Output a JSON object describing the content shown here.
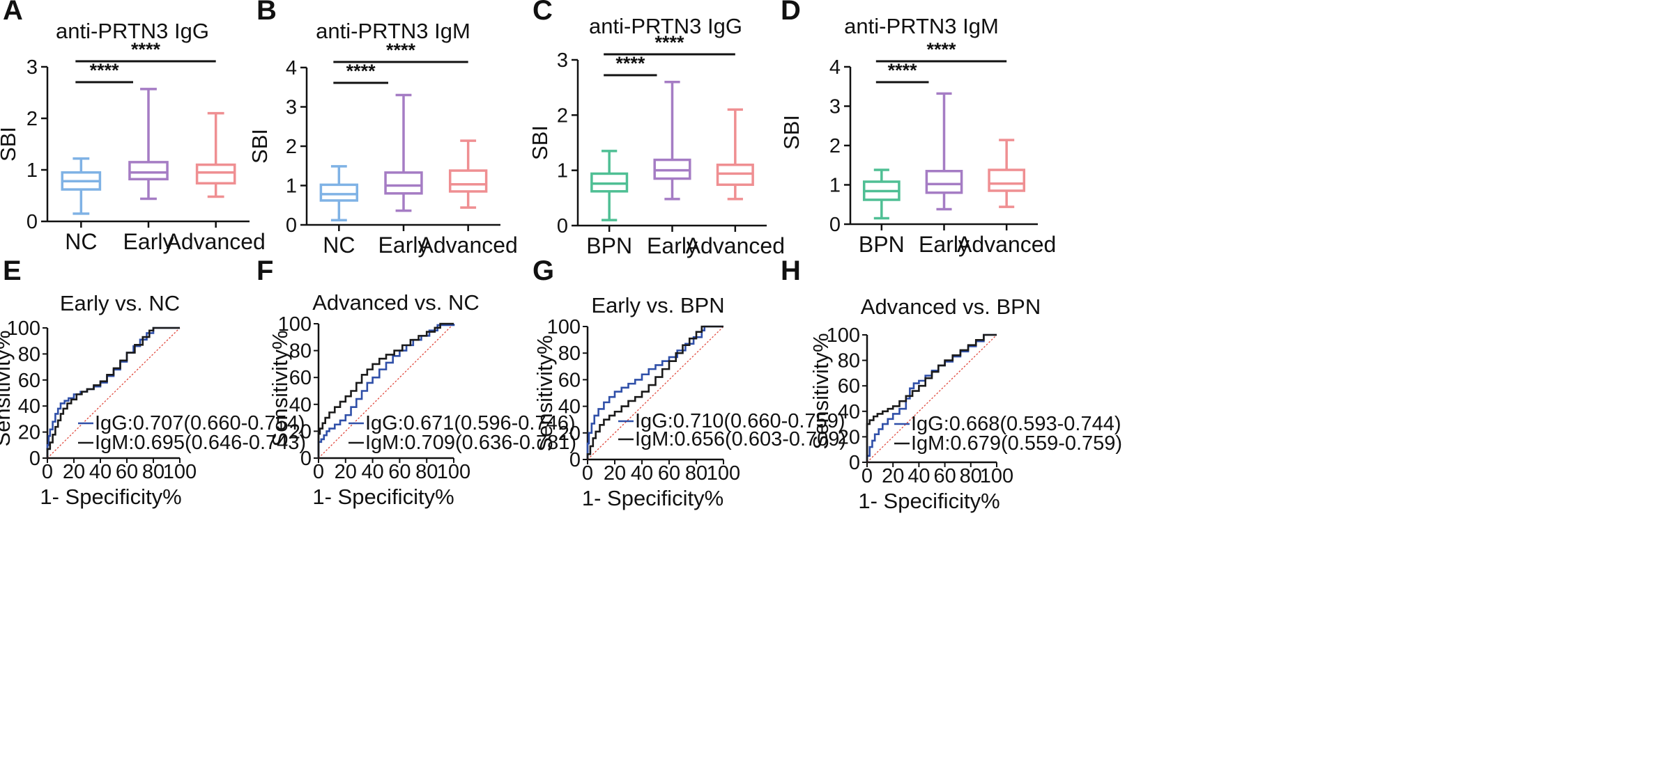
{
  "figure": {
    "panels_top": [
      "A",
      "B",
      "C",
      "D"
    ],
    "panels_bottom": [
      "E",
      "F",
      "G",
      "H"
    ]
  },
  "chart_data": [
    {
      "panel": "A",
      "type": "box",
      "title": "anti-PRTN3 IgG",
      "ylabel": "SBI",
      "ylim": [
        0,
        3
      ],
      "yticks": [
        "0",
        "1",
        "2",
        "3"
      ],
      "categories": [
        "NC",
        "Early",
        "Advanced"
      ],
      "boxes": [
        {
          "min": 0.15,
          "q1": 0.62,
          "median": 0.78,
          "q3": 0.95,
          "max": 1.22,
          "color": "#7fb2e5"
        },
        {
          "min": 0.44,
          "q1": 0.82,
          "median": 0.95,
          "q3": 1.15,
          "max": 2.57,
          "color": "#a57cc4"
        },
        {
          "min": 0.48,
          "q1": 0.74,
          "median": 0.95,
          "q3": 1.1,
          "max": 2.1,
          "color": "#ef8f92"
        }
      ],
      "significance": [
        {
          "from": 0,
          "to": 1,
          "label": "****"
        },
        {
          "from": 0,
          "to": 2,
          "label": "****"
        }
      ]
    },
    {
      "panel": "B",
      "type": "box",
      "title": "anti-PRTN3 IgM",
      "ylabel": "SBI",
      "ylim": [
        0,
        4
      ],
      "yticks": [
        "0",
        "1",
        "2",
        "3",
        "4"
      ],
      "categories": [
        "NC",
        "Early",
        "Advanced"
      ],
      "boxes": [
        {
          "min": 0.12,
          "q1": 0.62,
          "median": 0.78,
          "q3": 1.02,
          "max": 1.49,
          "color": "#7fb2e5"
        },
        {
          "min": 0.36,
          "q1": 0.8,
          "median": 1.0,
          "q3": 1.33,
          "max": 3.3,
          "color": "#a57cc4"
        },
        {
          "min": 0.44,
          "q1": 0.85,
          "median": 1.03,
          "q3": 1.38,
          "max": 2.14,
          "color": "#ef8f92"
        }
      ],
      "significance": [
        {
          "from": 0,
          "to": 1,
          "label": "****"
        },
        {
          "from": 0,
          "to": 2,
          "label": "****"
        }
      ]
    },
    {
      "panel": "C",
      "type": "box",
      "title": "anti-PRTN3 IgG",
      "ylabel": "SBI",
      "ylim": [
        0,
        3
      ],
      "yticks": [
        "0",
        "1",
        "2",
        "3"
      ],
      "categories": [
        "BPN",
        "Early",
        "Advanced"
      ],
      "boxes": [
        {
          "min": 0.1,
          "q1": 0.62,
          "median": 0.76,
          "q3": 0.94,
          "max": 1.35,
          "color": "#4fbf94"
        },
        {
          "min": 0.48,
          "q1": 0.85,
          "median": 1.0,
          "q3": 1.19,
          "max": 2.6,
          "color": "#a57cc4"
        },
        {
          "min": 0.48,
          "q1": 0.74,
          "median": 0.94,
          "q3": 1.1,
          "max": 2.1,
          "color": "#ef8f92"
        }
      ],
      "significance": [
        {
          "from": 0,
          "to": 1,
          "label": "****"
        },
        {
          "from": 0,
          "to": 2,
          "label": "****"
        }
      ]
    },
    {
      "panel": "D",
      "type": "box",
      "title": "anti-PRTN3 IgM",
      "ylabel": "SBI",
      "ylim": [
        0,
        4
      ],
      "yticks": [
        "0",
        "1",
        "2",
        "3",
        "4"
      ],
      "categories": [
        "BPN",
        "Early",
        "Advanced"
      ],
      "boxes": [
        {
          "min": 0.15,
          "q1": 0.62,
          "median": 0.84,
          "q3": 1.08,
          "max": 1.38,
          "color": "#4fbf94"
        },
        {
          "min": 0.38,
          "q1": 0.8,
          "median": 1.02,
          "q3": 1.35,
          "max": 3.32,
          "color": "#a57cc4"
        },
        {
          "min": 0.44,
          "q1": 0.85,
          "median": 1.03,
          "q3": 1.38,
          "max": 2.14,
          "color": "#ef8f92"
        }
      ],
      "significance": [
        {
          "from": 0,
          "to": 1,
          "label": "****"
        },
        {
          "from": 0,
          "to": 2,
          "label": "****"
        }
      ]
    },
    {
      "panel": "E",
      "type": "line",
      "title": "Early vs. NC",
      "xlabel": "1- Specificity%",
      "ylabel": "Sensitivity%",
      "xlim": [
        0,
        100
      ],
      "ylim": [
        0,
        100
      ],
      "xticks": [
        "0",
        "20",
        "40",
        "60",
        "80",
        "100"
      ],
      "yticks": [
        "0",
        "20",
        "40",
        "60",
        "80",
        "100"
      ],
      "series": [
        {
          "name": "IgG",
          "legend": "IgG:0.707(0.660-0.754)",
          "color": "#2f4fa8",
          "x": [
            0,
            0,
            1,
            2,
            4,
            6,
            8,
            10,
            13,
            16,
            20,
            25,
            30,
            35,
            40,
            45,
            50,
            55,
            60,
            65,
            70,
            75,
            80,
            100
          ],
          "y": [
            0,
            10,
            17,
            22,
            28,
            34,
            38,
            42,
            44,
            46,
            49,
            51,
            53,
            55,
            58,
            63,
            68,
            74,
            81,
            86,
            91,
            96,
            100,
            100
          ]
        },
        {
          "name": "IgM",
          "legend": "IgM:0.695(0.646-0.743)",
          "color": "#1a1a1a",
          "x": [
            0,
            0,
            2,
            4,
            6,
            8,
            10,
            12,
            15,
            18,
            22,
            26,
            30,
            35,
            40,
            45,
            50,
            55,
            60,
            66,
            72,
            77,
            80,
            100
          ],
          "y": [
            0,
            7,
            12,
            18,
            24,
            29,
            34,
            38,
            42,
            45,
            49,
            51,
            53,
            56,
            59,
            64,
            69,
            75,
            81,
            87,
            93,
            98,
            100,
            100
          ]
        }
      ]
    },
    {
      "panel": "F",
      "type": "line",
      "title": "Advanced  vs. NC",
      "xlabel": "1- Specificity%",
      "ylabel": "Sensitivity%",
      "xlim": [
        0,
        100
      ],
      "ylim": [
        0,
        100
      ],
      "xticks": [
        "0",
        "20",
        "40",
        "60",
        "80",
        "100"
      ],
      "yticks": [
        "0",
        "20",
        "40",
        "60",
        "80",
        "100"
      ],
      "series": [
        {
          "name": "IgG",
          "legend": "IgG:0.671(0.596-0.746)",
          "color": "#2f4fa8",
          "x": [
            0,
            0,
            2,
            4,
            6,
            8,
            12,
            16,
            20,
            24,
            28,
            32,
            36,
            40,
            45,
            50,
            55,
            60,
            65,
            70,
            76,
            82,
            88,
            100
          ],
          "y": [
            0,
            12,
            14,
            17,
            20,
            22,
            25,
            28,
            32,
            38,
            44,
            50,
            56,
            60,
            66,
            71,
            76,
            80,
            84,
            88,
            91,
            95,
            99,
            100
          ]
        },
        {
          "name": "IgM",
          "legend": "IgM:0.709(0.636-0.781)",
          "color": "#1a1a1a",
          "x": [
            0,
            0,
            1,
            3,
            5,
            8,
            12,
            16,
            20,
            24,
            28,
            32,
            36,
            40,
            45,
            50,
            56,
            62,
            68,
            74,
            80,
            86,
            90,
            100
          ],
          "y": [
            0,
            18,
            22,
            26,
            30,
            34,
            38,
            42,
            46,
            50,
            56,
            62,
            66,
            70,
            74,
            77,
            80,
            84,
            88,
            91,
            94,
            97,
            100,
            100
          ]
        }
      ]
    },
    {
      "panel": "G",
      "type": "line",
      "title": "Early vs. BPN",
      "xlabel": "1- Specificity%",
      "ylabel": "Sensitivity%",
      "xlim": [
        0,
        100
      ],
      "ylim": [
        0,
        100
      ],
      "xticks": [
        "0",
        "20",
        "40",
        "60",
        "80",
        "100"
      ],
      "yticks": [
        "0",
        "20",
        "40",
        "60",
        "80",
        "100"
      ],
      "series": [
        {
          "name": "IgG",
          "legend": "IgG:0.710(0.660-0.759)",
          "color": "#2f4fa8",
          "x": [
            0,
            0,
            1,
            3,
            5,
            8,
            12,
            16,
            20,
            25,
            30,
            35,
            40,
            45,
            50,
            55,
            60,
            66,
            72,
            78,
            84,
            86,
            100
          ],
          "y": [
            0,
            12,
            20,
            27,
            33,
            38,
            43,
            47,
            51,
            54,
            57,
            60,
            64,
            68,
            71,
            74,
            77,
            82,
            87,
            92,
            97,
            100,
            100
          ]
        },
        {
          "name": "IgM",
          "legend": "IgM:0.656(0.603-0.709)",
          "color": "#1a1a1a",
          "x": [
            0,
            0,
            2,
            4,
            6,
            9,
            12,
            16,
            20,
            25,
            30,
            35,
            40,
            45,
            50,
            55,
            60,
            65,
            70,
            75,
            80,
            84,
            100
          ],
          "y": [
            0,
            4,
            10,
            16,
            21,
            26,
            30,
            33,
            36,
            40,
            44,
            47,
            51,
            56,
            62,
            68,
            74,
            80,
            86,
            91,
            96,
            100,
            100
          ]
        }
      ]
    },
    {
      "panel": "H",
      "type": "line",
      "title": "Advanced  vs. BPN",
      "xlabel": "1- Specificity%",
      "ylabel": "Sensitivity%",
      "xlim": [
        0,
        100
      ],
      "ylim": [
        0,
        100
      ],
      "xticks": [
        "0",
        "20",
        "40",
        "60",
        "80",
        "100"
      ],
      "yticks": [
        "0",
        "20",
        "40",
        "60",
        "80",
        "100"
      ],
      "series": [
        {
          "name": "IgG",
          "legend": "IgG:0.668(0.593-0.744)",
          "color": "#2f4fa8",
          "x": [
            0,
            0,
            2,
            4,
            6,
            9,
            12,
            16,
            20,
            25,
            30,
            33,
            36,
            40,
            45,
            50,
            55,
            60,
            66,
            72,
            78,
            84,
            90,
            100
          ],
          "y": [
            0,
            5,
            12,
            17,
            22,
            26,
            30,
            34,
            38,
            42,
            50,
            58,
            62,
            64,
            68,
            72,
            76,
            79,
            83,
            87,
            91,
            95,
            100,
            100
          ]
        },
        {
          "name": "IgM",
          "legend": "IgM:0.679(0.559-0.759)",
          "color": "#1a1a1a",
          "x": [
            0,
            0,
            2,
            5,
            8,
            12,
            16,
            20,
            25,
            30,
            35,
            40,
            45,
            50,
            55,
            60,
            66,
            72,
            78,
            84,
            90,
            100
          ],
          "y": [
            0,
            30,
            33,
            36,
            38,
            40,
            42,
            44,
            48,
            52,
            56,
            60,
            66,
            71,
            76,
            80,
            84,
            88,
            92,
            96,
            100,
            100
          ]
        }
      ]
    }
  ]
}
